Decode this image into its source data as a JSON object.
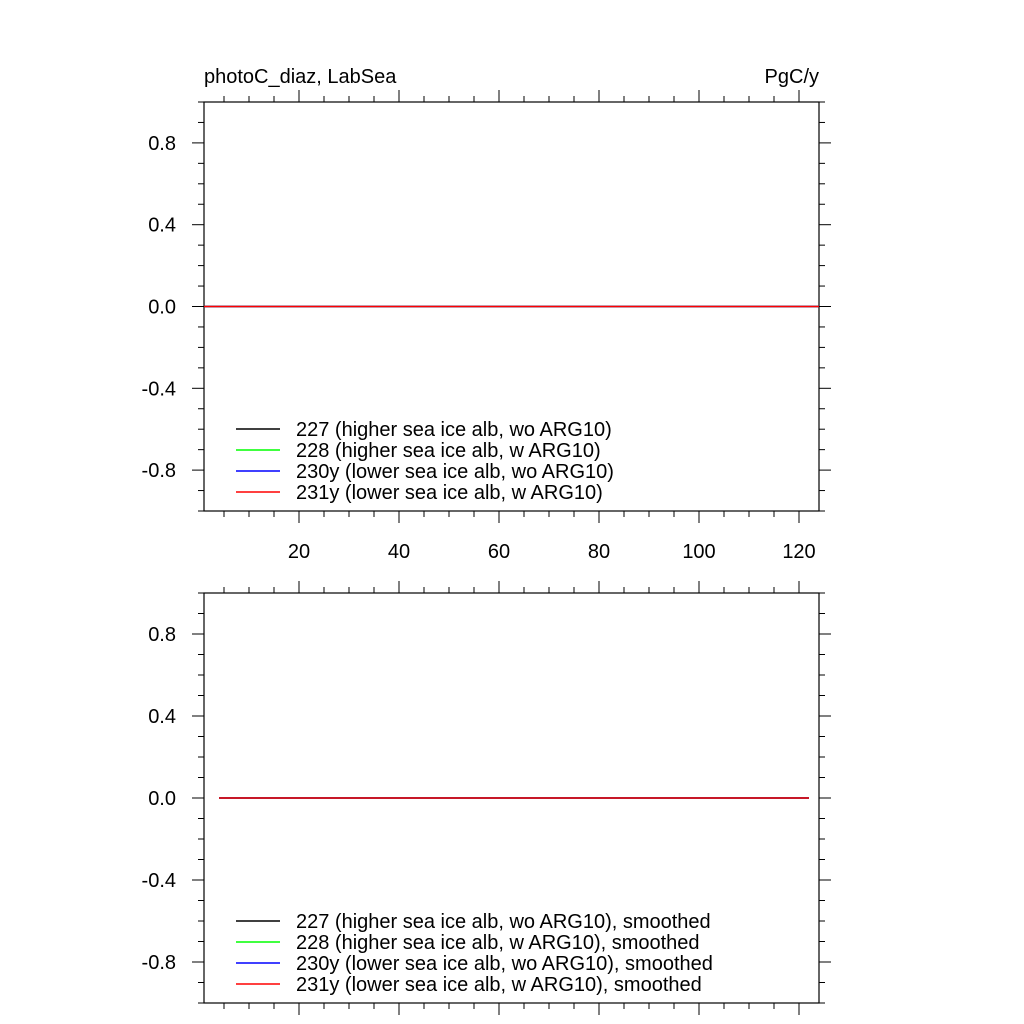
{
  "chart_data": [
    {
      "type": "line",
      "title_left": "photoC_diaz, LabSea",
      "title_right": "PgC/y",
      "xlabel": "",
      "ylabel": "",
      "xlim": [
        1,
        124
      ],
      "ylim": [
        -1,
        1
      ],
      "x_ticks": [
        20,
        40,
        60,
        80,
        100,
        120
      ],
      "x_tick_labels": [
        "20",
        "40",
        "60",
        "80",
        "100",
        "120"
      ],
      "y_ticks": [
        0.8,
        0.4,
        0.0,
        -0.4,
        -0.8
      ],
      "y_tick_labels": [
        "0.8",
        "0.4",
        "0.0",
        "-0.4",
        "-0.8"
      ],
      "grid": false,
      "legend_position": "bottom-left",
      "x": [
        1,
        124
      ],
      "series": [
        {
          "name": "227 (higher sea ice alb, wo ARG10)",
          "color": "#000000",
          "values": [
            0,
            0
          ]
        },
        {
          "name": "228 (higher sea ice alb, w ARG10)",
          "color": "#00ff00",
          "values": [
            0,
            0
          ]
        },
        {
          "name": "230y (lower sea ice alb, wo ARG10)",
          "color": "#0000ff",
          "values": [
            0,
            0
          ]
        },
        {
          "name": "231y (lower sea ice alb, w ARG10)",
          "color": "#ff0000",
          "values": [
            0,
            0
          ]
        }
      ]
    },
    {
      "type": "line",
      "xlabel": "",
      "ylabel": "",
      "xlim": [
        1,
        124
      ],
      "ylim": [
        -1,
        1
      ],
      "x_ticks": [
        20,
        40,
        60,
        80,
        100,
        120
      ],
      "y_ticks": [
        0.8,
        0.4,
        0.0,
        -0.4,
        -0.8
      ],
      "y_tick_labels": [
        "0.8",
        "0.4",
        "0.0",
        "-0.4",
        "-0.8"
      ],
      "grid": false,
      "legend_position": "bottom-left",
      "x": [
        4,
        122
      ],
      "series": [
        {
          "name": "227 (higher sea ice alb, wo ARG10), smoothed",
          "color": "#000000",
          "values": [
            0,
            0
          ]
        },
        {
          "name": "228 (higher sea ice alb, w ARG10), smoothed",
          "color": "#00ff00",
          "values": [
            0,
            0
          ]
        },
        {
          "name": "230y (lower sea ice alb, wo ARG10), smoothed",
          "color": "#0000ff",
          "values": [
            0,
            0
          ]
        },
        {
          "name": "231y (lower sea ice alb, w ARG10), smoothed",
          "color": "#ff0000",
          "values": [
            0,
            0
          ]
        }
      ]
    }
  ]
}
